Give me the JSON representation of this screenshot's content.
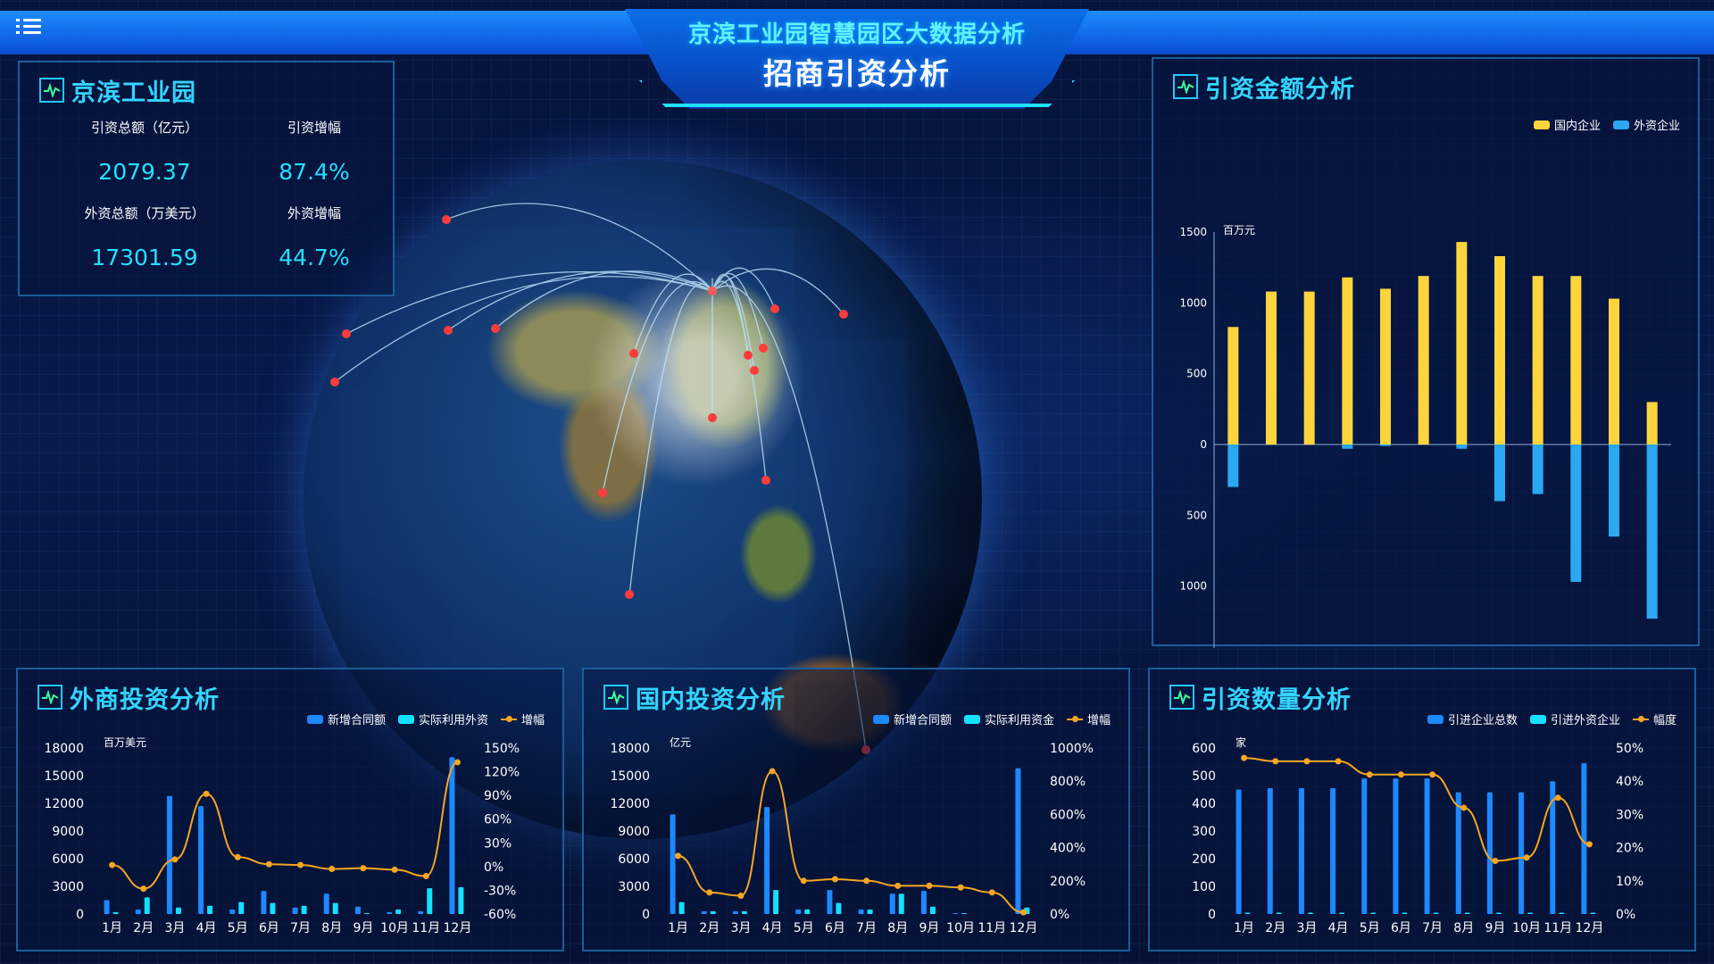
{
  "header": {
    "title": "京滨工业园智慧园区大数据分析",
    "subtitle": "招商引资分析"
  },
  "kpi_panel": {
    "title": "京滨工业园",
    "items": [
      {
        "label": "引资总额（亿元）",
        "value": "2079.37"
      },
      {
        "label": "引资增幅",
        "value": "87.4%"
      },
      {
        "label": "外资总额（万美元）",
        "value": "17301.59"
      },
      {
        "label": "外资增幅",
        "value": "44.7%"
      }
    ]
  },
  "colors": {
    "accent": "#34d4ff",
    "yellow": "#fdd43c",
    "blue": "#1e88ff",
    "cyan": "#14e0ff",
    "orange": "#f5a623",
    "sky": "#2aa9f2"
  },
  "chart_data": [
    {
      "id": "amount",
      "type": "bar",
      "title": "引资金额分析",
      "ylabel": "百万元",
      "categories": [
        "1月",
        "2月",
        "3月",
        "4月",
        "5月",
        "6月",
        "7月",
        "8月",
        "9月",
        "10月",
        "11月",
        "12月"
      ],
      "series": [
        {
          "name": "国内企业",
          "values": [
            830,
            1080,
            1080,
            1180,
            1100,
            1190,
            1430,
            1330,
            1190,
            1190,
            1030,
            300
          ]
        },
        {
          "name": "外资企业",
          "values": [
            -300,
            0,
            0,
            -30,
            -10,
            0,
            -30,
            -400,
            -350,
            -970,
            -650,
            -1230
          ]
        }
      ],
      "ylim": [
        -1500,
        1500
      ],
      "yticks": [
        "1500",
        "1000",
        "500",
        "0",
        "500",
        "1000",
        "1500"
      ],
      "legend": "top-right"
    },
    {
      "id": "foreign",
      "type": "bar",
      "title": "外商投资分析",
      "ylabel": "百万美元",
      "categories": [
        "1月",
        "2月",
        "3月",
        "4月",
        "5月",
        "6月",
        "7月",
        "8月",
        "9月",
        "10月",
        "11月",
        "12月"
      ],
      "series": [
        {
          "name": "新增合同额",
          "type": "bar",
          "values": [
            1500,
            500,
            12800,
            11700,
            500,
            2500,
            700,
            2200,
            800,
            200,
            300,
            17000
          ]
        },
        {
          "name": "实际利用外资",
          "type": "bar",
          "values": [
            200,
            1800,
            700,
            900,
            1300,
            1200,
            900,
            1200,
            100,
            500,
            2800,
            2900
          ]
        },
        {
          "name": "增幅",
          "type": "line",
          "values": [
            2,
            -28,
            9,
            92,
            12,
            3,
            2,
            -3,
            -2,
            -4,
            -12,
            132
          ]
        }
      ],
      "ylim": [
        0,
        18000
      ],
      "y2lim": [
        -60,
        150
      ],
      "yticks": [
        "18000",
        "15000",
        "12000",
        "9000",
        "6000",
        "3000",
        "0"
      ],
      "y2ticks": [
        "150%",
        "120%",
        "90%",
        "60%",
        "30%",
        "0%",
        "-30%",
        "-60%"
      ],
      "legend": "top-right"
    },
    {
      "id": "domestic",
      "type": "bar",
      "title": "国内投资分析",
      "ylabel": "亿元",
      "categories": [
        "1月",
        "2月",
        "3月",
        "4月",
        "5月",
        "6月",
        "7月",
        "8月",
        "9月",
        "10月",
        "11月",
        "12月"
      ],
      "series": [
        {
          "name": "新增合同额",
          "type": "bar",
          "values": [
            10800,
            300,
            300,
            11600,
            500,
            2600,
            500,
            2200,
            2500,
            100,
            0,
            15800
          ]
        },
        {
          "name": "实际利用资金",
          "type": "bar",
          "values": [
            1300,
            300,
            300,
            2600,
            500,
            1200,
            500,
            2200,
            800,
            100,
            0,
            700
          ]
        },
        {
          "name": "增幅",
          "type": "line",
          "values": [
            350,
            130,
            110,
            860,
            200,
            210,
            200,
            170,
            170,
            160,
            130,
            10
          ]
        }
      ],
      "ylim": [
        0,
        18000
      ],
      "y2lim": [
        0,
        1000
      ],
      "yticks": [
        "18000",
        "15000",
        "12000",
        "9000",
        "6000",
        "3000",
        "0"
      ],
      "y2ticks": [
        "1000%",
        "800%",
        "600%",
        "400%",
        "200%",
        "0%"
      ],
      "legend": "top-right"
    },
    {
      "id": "count",
      "type": "bar",
      "title": "引资数量分析",
      "ylabel": "家",
      "categories": [
        "1月",
        "2月",
        "3月",
        "4月",
        "5月",
        "6月",
        "7月",
        "8月",
        "9月",
        "10月",
        "11月",
        "12月"
      ],
      "series": [
        {
          "name": "引进企业总数",
          "type": "bar",
          "values": [
            450,
            455,
            455,
            455,
            490,
            490,
            490,
            440,
            440,
            440,
            480,
            545
          ]
        },
        {
          "name": "引进外资企业",
          "type": "bar",
          "values": [
            5,
            5,
            5,
            5,
            5,
            5,
            5,
            5,
            5,
            5,
            5,
            5
          ]
        },
        {
          "name": "幅度",
          "type": "line",
          "values": [
            47,
            46,
            46,
            46,
            42,
            42,
            42,
            32,
            16,
            17,
            35,
            21
          ]
        }
      ],
      "ylim": [
        0,
        600
      ],
      "y2lim": [
        0,
        50
      ],
      "yticks": [
        "600",
        "500",
        "400",
        "300",
        "200",
        "100",
        "0"
      ],
      "y2ticks": [
        "50%",
        "40%",
        "30%",
        "20%",
        "10%",
        "0%"
      ],
      "legend": "top-right"
    }
  ]
}
